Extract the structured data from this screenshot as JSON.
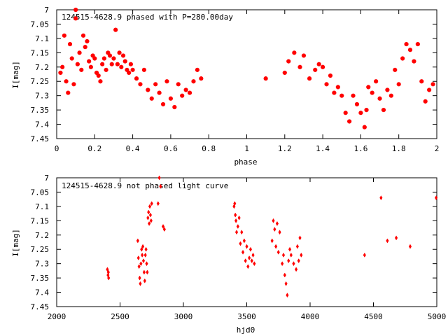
{
  "chart_data": [
    {
      "type": "scatter",
      "title": "124515-4628.9 phased with P=280.00day",
      "xlabel": "phase",
      "ylabel": "I[mag]",
      "xlim": [
        0,
        2
      ],
      "ylim": [
        7.45,
        7.0
      ],
      "y_inverted": true,
      "grid": false,
      "xticks": [
        "0",
        "0.2",
        "0.4",
        "0.6",
        "0.8",
        "1",
        "1.2",
        "1.4",
        "1.6",
        "1.8",
        "2"
      ],
      "yticks": [
        "7",
        "7.05",
        "7.1",
        "7.15",
        "7.2",
        "7.25",
        "7.3",
        "7.35",
        "7.4",
        "7.45"
      ],
      "marker": "filled-circle",
      "color": "#ff0000",
      "x": [
        0.02,
        0.03,
        0.04,
        0.05,
        0.06,
        0.07,
        0.08,
        0.09,
        0.1,
        0.1,
        0.11,
        0.12,
        0.13,
        0.14,
        0.15,
        0.16,
        0.17,
        0.18,
        0.19,
        0.2,
        0.21,
        0.22,
        0.23,
        0.24,
        0.25,
        0.26,
        0.27,
        0.28,
        0.29,
        0.3,
        0.31,
        0.32,
        0.33,
        0.34,
        0.35,
        0.36,
        0.37,
        0.38,
        0.39,
        0.4,
        0.42,
        0.44,
        0.46,
        0.48,
        0.5,
        0.52,
        0.54,
        0.56,
        0.58,
        0.6,
        0.62,
        0.64,
        0.66,
        0.68,
        0.7,
        0.72,
        0.74,
        0.76,
        1.1,
        1.2,
        1.22,
        1.25,
        1.28,
        1.3,
        1.33,
        1.36,
        1.38,
        1.4,
        1.42,
        1.44,
        1.46,
        1.48,
        1.5,
        1.52,
        1.54,
        1.56,
        1.58,
        1.6,
        1.62,
        1.63,
        1.64,
        1.66,
        1.68,
        1.7,
        1.72,
        1.74,
        1.76,
        1.78,
        1.8,
        1.82,
        1.84,
        1.86,
        1.88,
        1.9,
        1.92,
        1.94,
        1.96,
        1.98
      ],
      "y": [
        7.22,
        7.2,
        7.09,
        7.25,
        7.29,
        7.12,
        7.17,
        7.26,
        7.03,
        7.0,
        7.19,
        7.15,
        7.21,
        7.09,
        7.13,
        7.11,
        7.18,
        7.2,
        7.16,
        7.17,
        7.22,
        7.23,
        7.25,
        7.19,
        7.17,
        7.21,
        7.15,
        7.16,
        7.19,
        7.17,
        7.07,
        7.19,
        7.15,
        7.2,
        7.16,
        7.18,
        7.21,
        7.22,
        7.19,
        7.21,
        7.24,
        7.26,
        7.21,
        7.28,
        7.31,
        7.26,
        7.29,
        7.33,
        7.25,
        7.31,
        7.34,
        7.26,
        7.3,
        7.28,
        7.29,
        7.25,
        7.21,
        7.24,
        7.24,
        7.22,
        7.18,
        7.15,
        7.2,
        7.16,
        7.24,
        7.21,
        7.19,
        7.2,
        7.26,
        7.23,
        7.29,
        7.27,
        7.3,
        7.36,
        7.39,
        7.3,
        7.33,
        7.36,
        7.41,
        7.35,
        7.27,
        7.29,
        7.25,
        7.31,
        7.35,
        7.28,
        7.3,
        7.21,
        7.26,
        7.17,
        7.12,
        7.14,
        7.18,
        7.12,
        7.25,
        7.32,
        7.28,
        7.26
      ]
    },
    {
      "type": "scatter",
      "title": "124515-4628.9 not phased light curve",
      "xlabel": "hjd0",
      "ylabel": "I[mag]",
      "xlim": [
        2000,
        5000
      ],
      "ylim": [
        7.45,
        7.0
      ],
      "y_inverted": true,
      "grid": false,
      "xticks": [
        "2000",
        "2500",
        "3000",
        "3500",
        "4000",
        "4500",
        "5000"
      ],
      "yticks": [
        "7",
        "7.05",
        "7.1",
        "7.15",
        "7.2",
        "7.25",
        "7.3",
        "7.35",
        "7.4",
        "7.45"
      ],
      "marker": "small-diamond",
      "color": "#ff0000",
      "x": [
        2400,
        2405,
        2408,
        2410,
        2640,
        2645,
        2650,
        2655,
        2660,
        2665,
        2670,
        2675,
        2680,
        2685,
        2690,
        2695,
        2700,
        2705,
        2710,
        2715,
        2720,
        2725,
        2730,
        2735,
        2740,
        2745,
        2750,
        2800,
        2810,
        2820,
        2840,
        2850,
        3400,
        3405,
        3410,
        3415,
        3420,
        3430,
        3440,
        3450,
        3460,
        3470,
        3480,
        3490,
        3500,
        3510,
        3520,
        3530,
        3540,
        3550,
        3560,
        3700,
        3710,
        3720,
        3730,
        3740,
        3750,
        3760,
        3780,
        3790,
        3800,
        3810,
        3820,
        3830,
        3840,
        3850,
        3870,
        3890,
        3900,
        3910,
        3920,
        3930,
        4430,
        4560,
        4610,
        4680,
        4790,
        4995
      ],
      "y": [
        7.32,
        7.34,
        7.33,
        7.35,
        7.22,
        7.28,
        7.31,
        7.35,
        7.37,
        7.3,
        7.25,
        7.27,
        7.24,
        7.29,
        7.33,
        7.36,
        7.27,
        7.25,
        7.3,
        7.33,
        7.14,
        7.12,
        7.16,
        7.1,
        7.13,
        7.15,
        7.09,
        7.09,
        7.0,
        7.03,
        7.17,
        7.18,
        7.1,
        7.09,
        7.13,
        7.15,
        7.19,
        7.17,
        7.14,
        7.23,
        7.19,
        7.26,
        7.22,
        7.29,
        7.24,
        7.31,
        7.28,
        7.25,
        7.29,
        7.27,
        7.3,
        7.22,
        7.15,
        7.18,
        7.24,
        7.16,
        7.26,
        7.19,
        7.3,
        7.27,
        7.34,
        7.37,
        7.41,
        7.29,
        7.25,
        7.27,
        7.3,
        7.32,
        7.24,
        7.29,
        7.21,
        7.27,
        7.27,
        7.07,
        7.22,
        7.21,
        7.24,
        7.07
      ]
    }
  ]
}
